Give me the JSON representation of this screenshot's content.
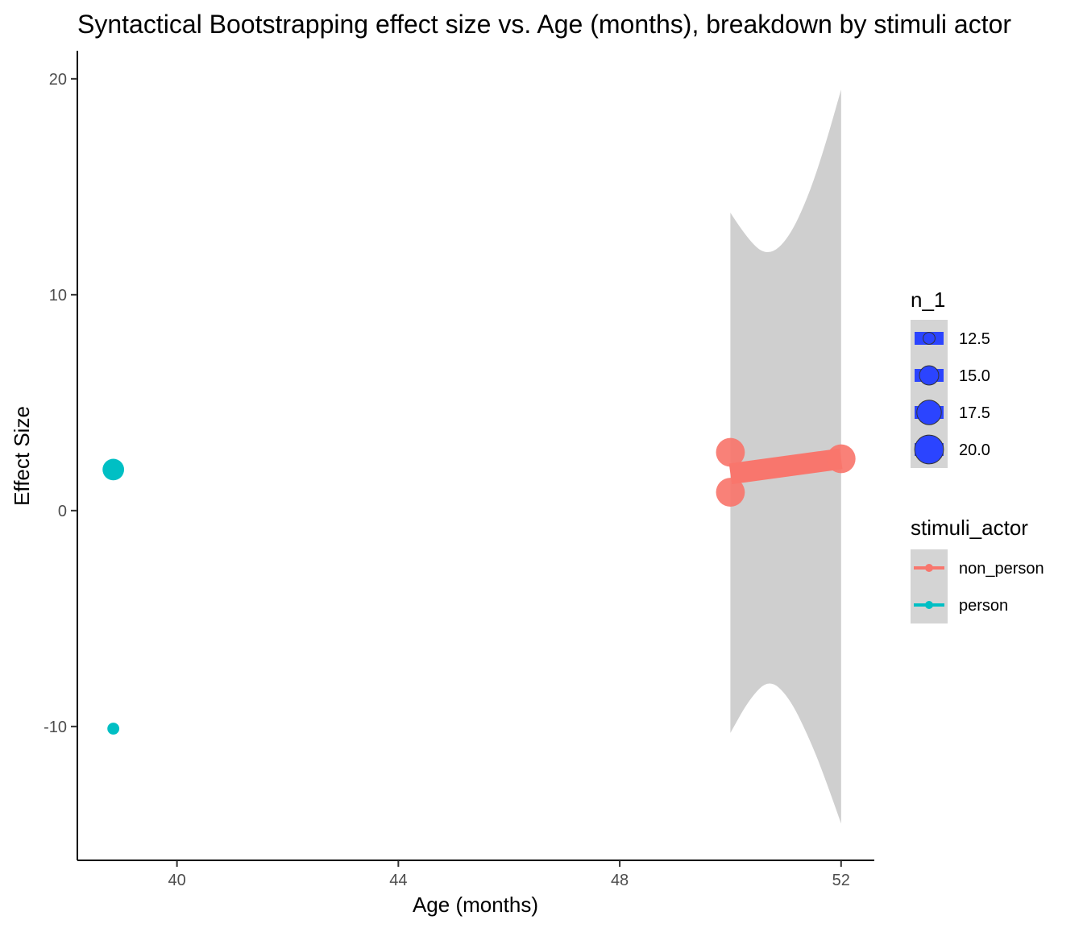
{
  "chart_data": {
    "type": "scatter",
    "title": "Syntactical Bootstrapping effect size vs. Age (months), breakdown by stimuli actor",
    "xlabel": "Age (months)",
    "ylabel": "Effect Size",
    "xlim": [
      38.2,
      52.6
    ],
    "ylim": [
      -16.2,
      21.3
    ],
    "x_ticks": [
      40,
      44,
      48,
      52
    ],
    "y_ticks": [
      -10,
      0,
      10,
      20
    ],
    "grid": false,
    "series": [
      {
        "name": "non_person",
        "color": "#F8766D",
        "points": [
          {
            "x": 50.0,
            "y": 2.7,
            "n_1": 20
          },
          {
            "x": 50.0,
            "y": 0.85,
            "n_1": 20
          },
          {
            "x": 52.0,
            "y": 2.4,
            "n_1": 20
          }
        ],
        "trend": {
          "x": [
            50.0,
            52.0
          ],
          "y": [
            1.7,
            2.4
          ]
        },
        "ribbon": [
          {
            "x": 50.0,
            "lo": -10.3,
            "hi": 13.8
          },
          {
            "x": 50.35,
            "lo": -8.7,
            "hi": 12.4
          },
          {
            "x": 50.7,
            "lo": -7.8,
            "hi": 11.8
          },
          {
            "x": 51.05,
            "lo": -8.6,
            "hi": 12.6
          },
          {
            "x": 51.4,
            "lo": -10.4,
            "hi": 14.5
          },
          {
            "x": 51.7,
            "lo": -12.3,
            "hi": 16.8
          },
          {
            "x": 52.0,
            "lo": -14.5,
            "hi": 19.5
          }
        ]
      },
      {
        "name": "person",
        "color": "#00BFC4",
        "points": [
          {
            "x": 38.85,
            "y": 1.9,
            "n_1": 16
          },
          {
            "x": 38.85,
            "y": -10.1,
            "n_1": 10
          }
        ]
      }
    ],
    "legend": {
      "placement": "right",
      "size_title": "n_1",
      "size_entries": [
        "12.5",
        "15.0",
        "17.5",
        "20.0"
      ],
      "size_values": [
        12.5,
        15.0,
        17.5,
        20.0
      ],
      "size_fill": "#2B44FF",
      "color_title": "stimuli_actor",
      "color_entries": [
        "non_person",
        "person"
      ]
    }
  }
}
